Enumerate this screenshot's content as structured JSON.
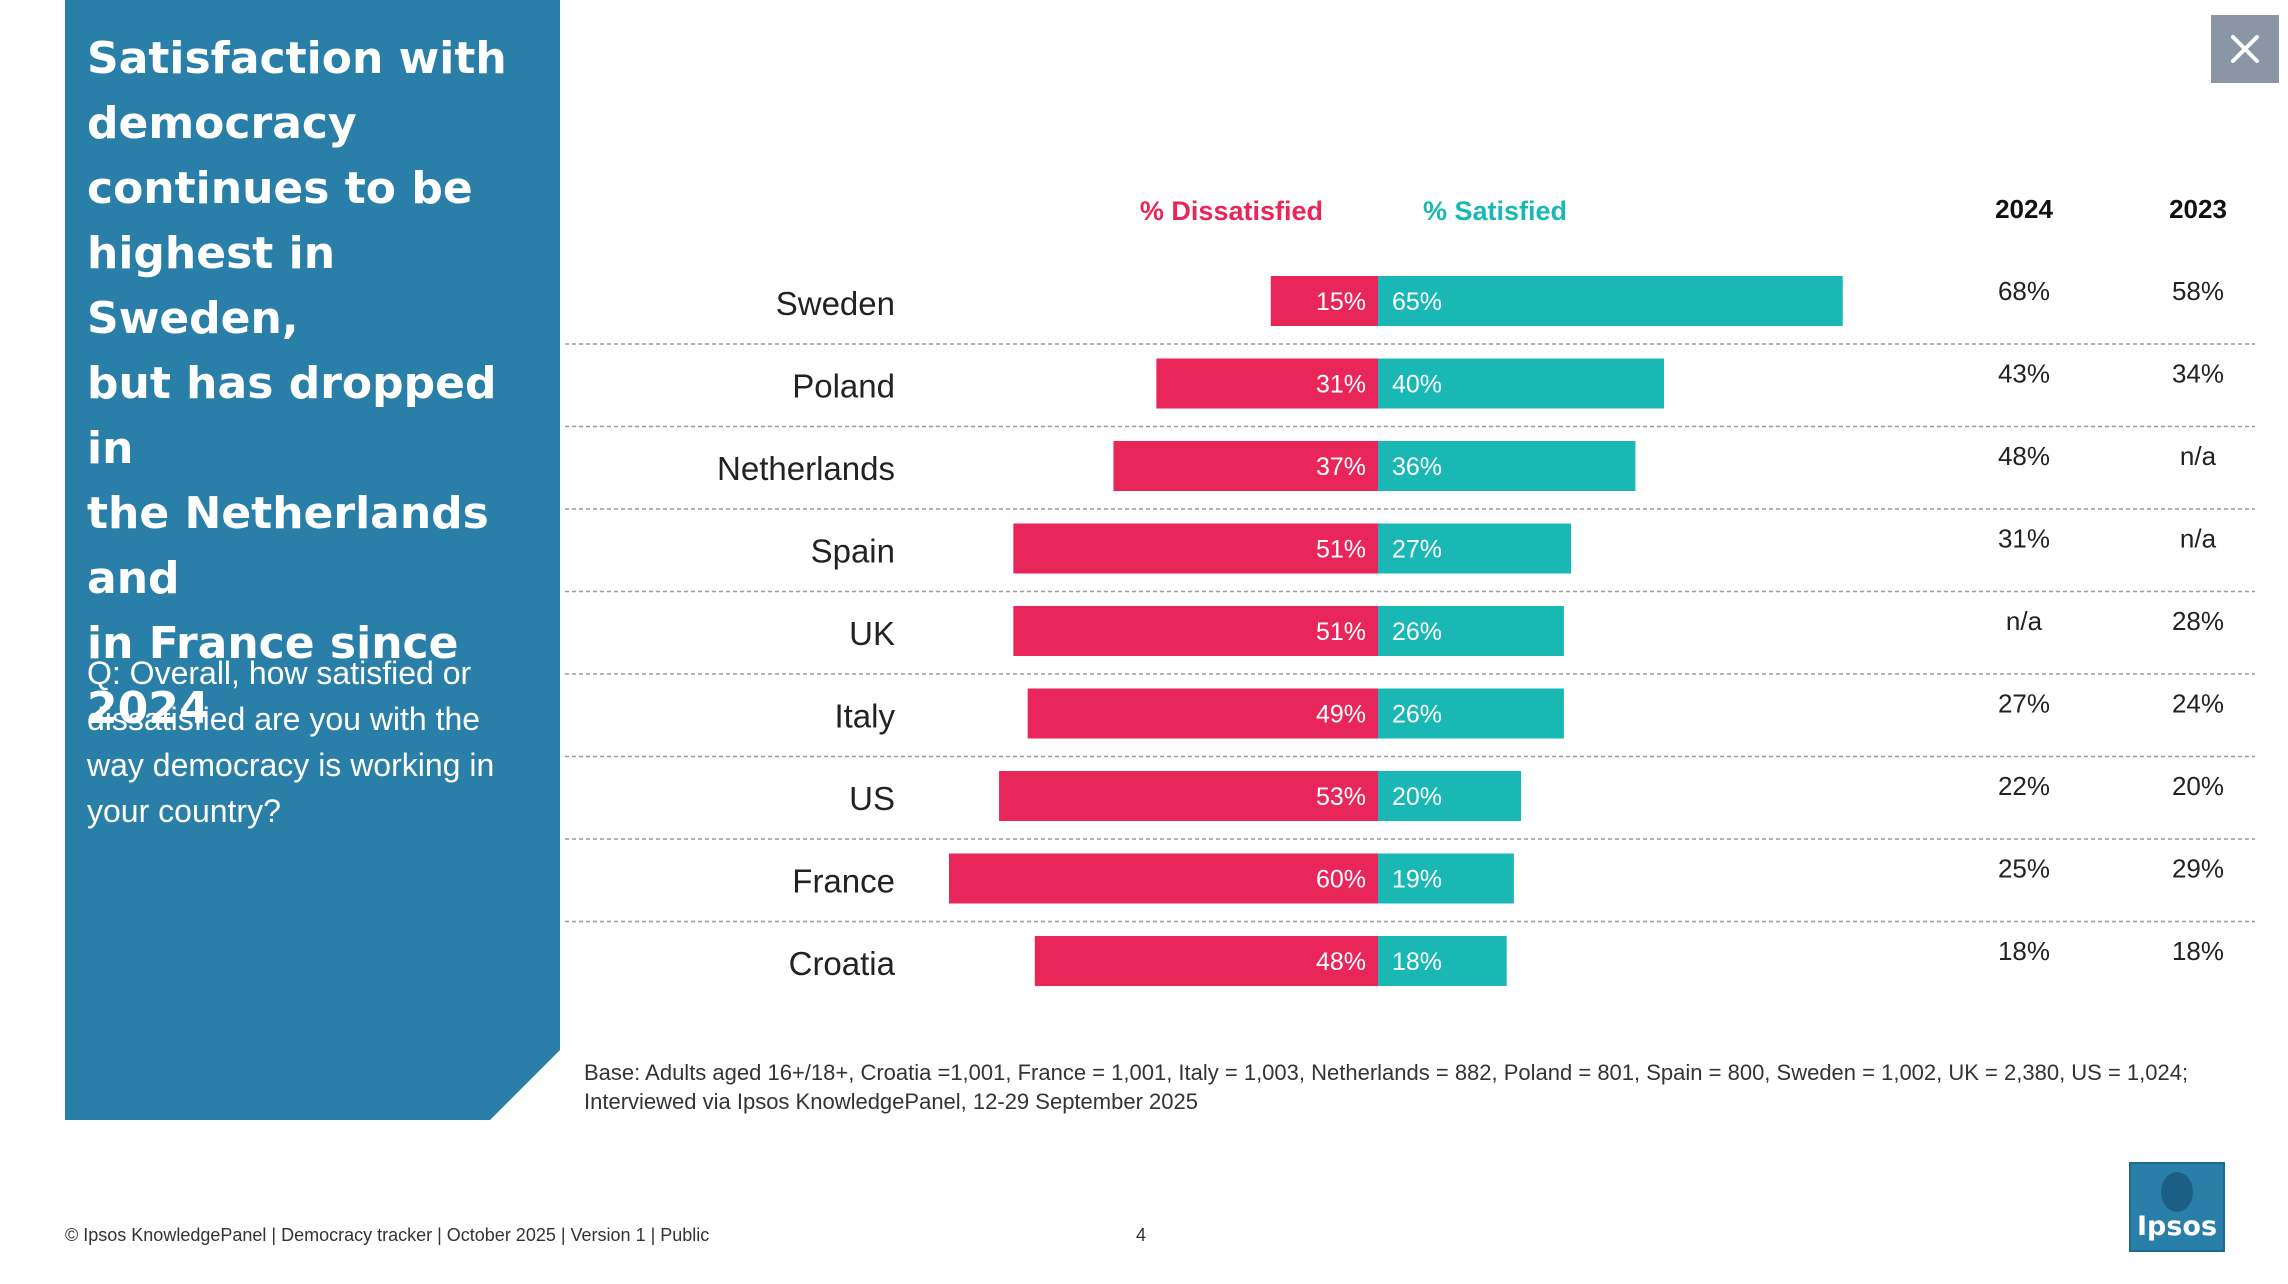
{
  "panel": {
    "title": "Satisfaction with\ndemocracy\ncontinues to be\nhighest in Sweden,\nbut has dropped in\nthe Netherlands and\nin France since\n2024",
    "question": "Q: Overall, how satisfied or dissatisfied are you with the way democracy is working in your country?"
  },
  "close_icon": "close-icon",
  "colors": {
    "panel": "#2a7fa8",
    "dissatisfied": "#e8265a",
    "satisfied": "#19b8b5",
    "close_button": "#8a96a6"
  },
  "chart_data": {
    "type": "bar",
    "orientation": "horizontal-diverging",
    "legend": {
      "dissatisfied_label": "% Dissatisfied",
      "satisfied_label": "% Satisfied"
    },
    "year_headers": [
      "2024",
      "2023"
    ],
    "categories": [
      "Sweden",
      "Poland",
      "Netherlands",
      "Spain",
      "UK",
      "Italy",
      "US",
      "France",
      "Croatia"
    ],
    "series": [
      {
        "name": "% Dissatisfied",
        "values": [
          15,
          31,
          37,
          51,
          51,
          49,
          53,
          60,
          48
        ]
      },
      {
        "name": "% Satisfied",
        "values": [
          65,
          40,
          36,
          27,
          26,
          26,
          20,
          19,
          18
        ]
      }
    ],
    "year_values": {
      "2024": [
        "68%",
        "43%",
        "48%",
        "31%",
        "n/a",
        "27%",
        "22%",
        "25%",
        "18%"
      ],
      "2023": [
        "58%",
        "34%",
        "n/a",
        "n/a",
        "28%",
        "24%",
        "20%",
        "29%",
        "18%"
      ]
    },
    "value_suffix": "%"
  },
  "base_note": "Base: Adults aged 16+/18+, Croatia =1,001, France = 1,001, Italy = 1,003, Netherlands = 882, Poland = 801, Spain = 800, Sweden = 1,002, UK = 2,380, US = 1,024;\nInterviewed via Ipsos KnowledgePanel, 12-29 September 2025",
  "footer": "© Ipsos KnowledgePanel | Democracy tracker | October 2025 | Version 1 | Public",
  "page_number": "4",
  "logo": {
    "text": "Ipsos"
  }
}
